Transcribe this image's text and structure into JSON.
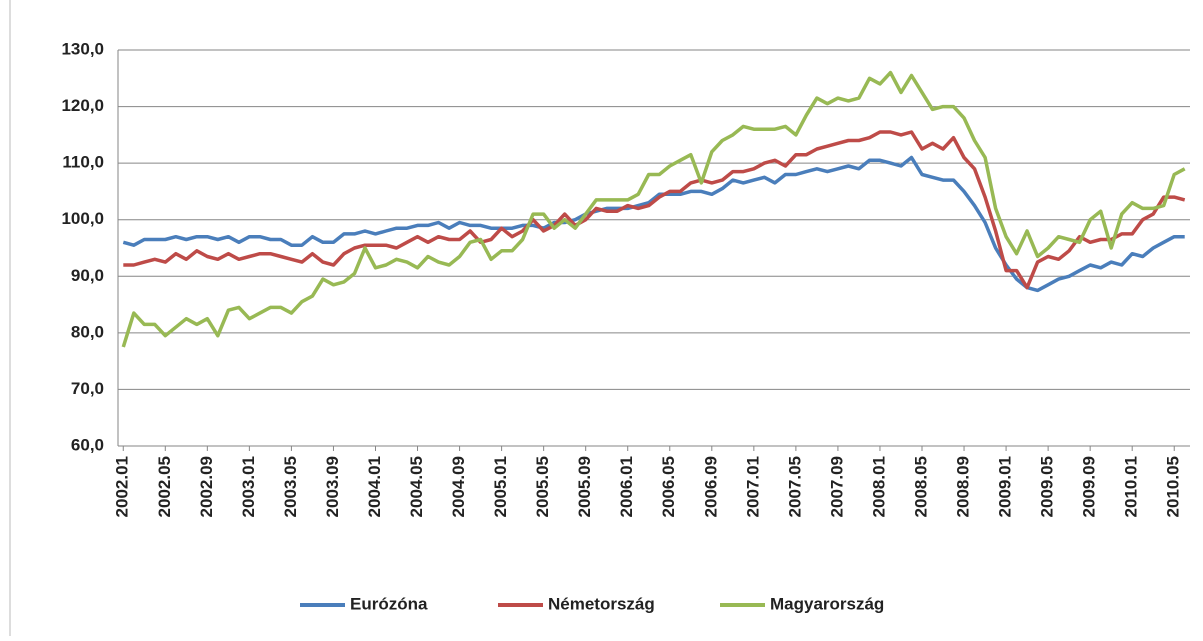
{
  "chart_data": {
    "type": "line",
    "categories": [
      "2002.01",
      null,
      null,
      null,
      "2002.05",
      null,
      null,
      null,
      "2002.09",
      null,
      null,
      null,
      "2003.01",
      null,
      null,
      null,
      "2003.05",
      null,
      null,
      null,
      "2003.09",
      null,
      null,
      null,
      "2004.01",
      null,
      null,
      null,
      "2004.05",
      null,
      null,
      null,
      "2004.09",
      null,
      null,
      null,
      "2005.01",
      null,
      null,
      null,
      "2005.05",
      null,
      null,
      null,
      "2005.09",
      null,
      null,
      null,
      "2006.01",
      null,
      null,
      null,
      "2006.05",
      null,
      null,
      null,
      "2006.09",
      null,
      null,
      null,
      "2007.01",
      null,
      null,
      null,
      "2007.05",
      null,
      null,
      null,
      "2007.09",
      null,
      null,
      null,
      "2008.01",
      null,
      null,
      null,
      "2008.05",
      null,
      null,
      null,
      "2008.09",
      null,
      null,
      null,
      "2009.01",
      null,
      null,
      null,
      "2009.05",
      null,
      null,
      null,
      "2009.09",
      null,
      null,
      null,
      "2010.01",
      null,
      null,
      null,
      "2010.05",
      null
    ],
    "series": [
      {
        "name": "Eurózóna",
        "color": "#4a7ebb",
        "values": [
          96,
          95.5,
          96.5,
          96.5,
          96.5,
          97,
          96.5,
          97,
          97,
          96.5,
          97,
          96,
          97,
          97,
          96.5,
          96.5,
          95.5,
          95.5,
          97,
          96,
          96,
          97.5,
          97.5,
          98,
          97.5,
          98,
          98.5,
          98.5,
          99,
          99,
          99.5,
          98.5,
          99.5,
          99,
          99,
          98.5,
          98.5,
          98.5,
          99,
          99,
          98.5,
          99.5,
          99.5,
          100,
          101,
          101.5,
          102,
          102,
          102,
          102.5,
          103,
          104.5,
          104.5,
          104.5,
          105,
          105,
          104.5,
          105.5,
          107,
          106.5,
          107,
          107.5,
          106.5,
          108,
          108,
          108.5,
          109,
          108.5,
          109,
          109.5,
          109,
          110.5,
          110.5,
          110,
          109.5,
          111,
          108,
          107.5,
          107,
          107,
          105,
          102.5,
          99.5,
          95,
          92,
          89.5,
          88,
          87.5,
          88.5,
          89.5,
          90,
          91,
          92,
          91.5,
          92.5,
          92,
          94,
          93.5,
          95,
          96,
          97,
          97
        ]
      },
      {
        "name": "Németország",
        "color": "#be4b48",
        "values": [
          92,
          92,
          92.5,
          93,
          92.5,
          94,
          93,
          94.5,
          93.5,
          93,
          94,
          93,
          93.5,
          94,
          94,
          93.5,
          93,
          92.5,
          94,
          92.5,
          92,
          94,
          95,
          95.5,
          95.5,
          95.5,
          95,
          96,
          97,
          96,
          97,
          96.5,
          96.5,
          98,
          96,
          96.5,
          98.5,
          97,
          98,
          100,
          98,
          99,
          101,
          99,
          100,
          102,
          101.5,
          101.5,
          102.5,
          102,
          102.5,
          104,
          105,
          105,
          106.5,
          107,
          106.5,
          107,
          108.5,
          108.5,
          109,
          110,
          110.5,
          109.5,
          111.5,
          111.5,
          112.5,
          113,
          113.5,
          114,
          114,
          114.5,
          115.5,
          115.5,
          115,
          115.5,
          112.5,
          113.5,
          112.5,
          114.5,
          111,
          109,
          104,
          98,
          91,
          91,
          88,
          92.5,
          93.5,
          93,
          94.5,
          97,
          96,
          96.5,
          96.5,
          97.5,
          97.5,
          100,
          101,
          104,
          104,
          103.5
        ]
      },
      {
        "name": "Magyarország",
        "color": "#98b954",
        "values": [
          77.5,
          83.5,
          81.5,
          81.5,
          79.5,
          81,
          82.5,
          81.5,
          82.5,
          79.5,
          84,
          84.5,
          82.5,
          83.5,
          84.5,
          84.5,
          83.5,
          85.5,
          86.5,
          89.5,
          88.5,
          89,
          90.5,
          95,
          91.5,
          92,
          93,
          92.5,
          91.5,
          93.5,
          92.5,
          92,
          93.5,
          96,
          96.5,
          93,
          94.5,
          94.5,
          96.5,
          101,
          101,
          98.5,
          100,
          98.5,
          101,
          103.5,
          103.5,
          103.5,
          103.5,
          104.5,
          108,
          108,
          109.5,
          110.5,
          111.5,
          106.5,
          112,
          114,
          115,
          116.5,
          116,
          116,
          116,
          116.5,
          115,
          118.5,
          121.5,
          120.5,
          121.5,
          121,
          121.5,
          125,
          124,
          126,
          122.5,
          125.5,
          122.5,
          119.5,
          120,
          120,
          118,
          114,
          111,
          102,
          97,
          94,
          98,
          93.5,
          95,
          97,
          96.5,
          96,
          100,
          101.5,
          95,
          101,
          103,
          102,
          102,
          102.5,
          108,
          109
        ]
      }
    ],
    "ylim": [
      60,
      130
    ],
    "yticks": [
      {
        "value": 60,
        "label": "60,0"
      },
      {
        "value": 70,
        "label": "70,0"
      },
      {
        "value": 80,
        "label": "80,0"
      },
      {
        "value": 90,
        "label": "90,0"
      },
      {
        "value": 100,
        "label": "100,0"
      },
      {
        "value": 110,
        "label": "110,0"
      },
      {
        "value": 120,
        "label": "120,0"
      },
      {
        "value": 130,
        "label": "130,0"
      }
    ],
    "grid": true,
    "legend": "bottom"
  }
}
